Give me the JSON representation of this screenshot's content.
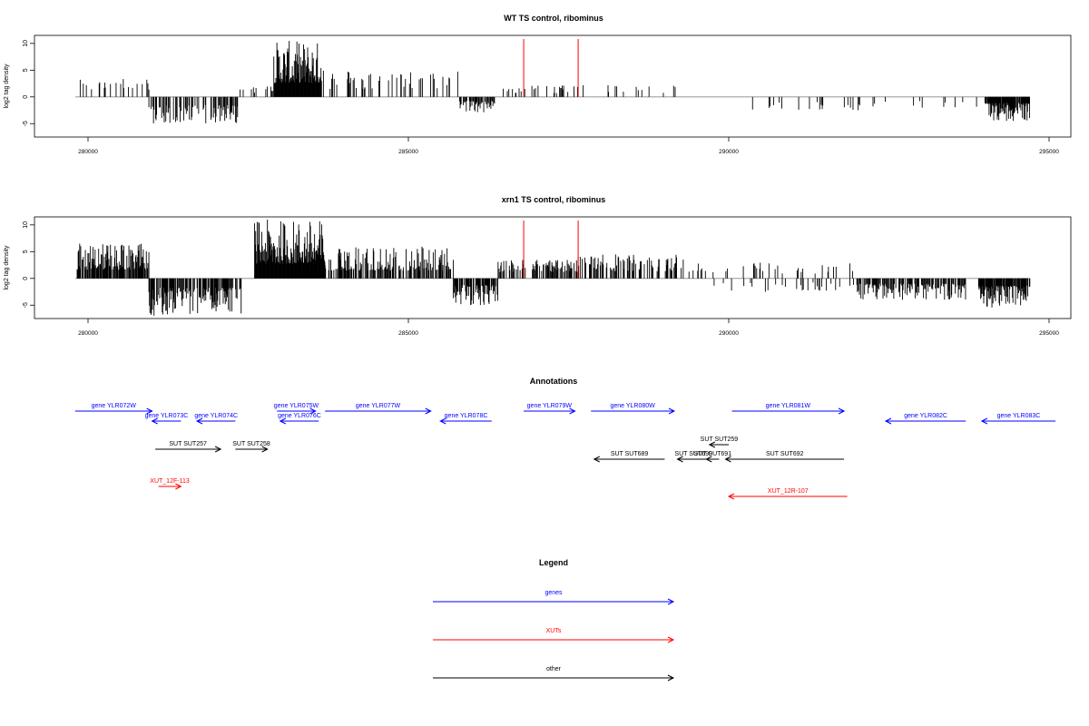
{
  "colors": {
    "gene": "#0000ff",
    "xut": "#ff0000",
    "other": "#000000",
    "marker": "#ff0000",
    "baseline": "#888888"
  },
  "chart_data": [
    {
      "type": "bar",
      "title": "WT TS control, ribominus",
      "xlabel": "",
      "ylabel": "log2 tag density",
      "xlim": [
        279800,
        294700
      ],
      "ylim": [
        -7.5,
        11.5
      ],
      "xticks": [
        280000,
        285000,
        290000,
        295000
      ],
      "yticks": [
        -5,
        0,
        5,
        10
      ],
      "marker_lines_x": [
        286800,
        287650
      ],
      "baseline": 0,
      "segments": [
        {
          "x0": 279830,
          "x1": 280950,
          "sign": 1,
          "max": 3.5,
          "density": 0.2
        },
        {
          "x0": 280950,
          "x1": 282350,
          "sign": -1,
          "max": 5.0,
          "density": 0.45
        },
        {
          "x0": 282350,
          "x1": 282900,
          "sign": 1,
          "max": 2.0,
          "density": 0.15
        },
        {
          "x0": 282900,
          "x1": 283650,
          "sign": 1,
          "max": 10.5,
          "density": 1.0
        },
        {
          "x0": 283650,
          "x1": 285800,
          "sign": 1,
          "max": 5.0,
          "density": 0.15
        },
        {
          "x0": 285800,
          "x1": 286350,
          "sign": -1,
          "max": 3.0,
          "density": 0.6
        },
        {
          "x0": 286400,
          "x1": 287900,
          "sign": 1,
          "max": 2.2,
          "density": 0.1
        },
        {
          "x0": 287900,
          "x1": 289300,
          "sign": 1,
          "max": 2.5,
          "density": 0.08
        },
        {
          "x0": 290300,
          "x1": 293900,
          "sign": -1,
          "max": 2.5,
          "density": 0.05
        },
        {
          "x0": 294000,
          "x1": 294700,
          "sign": -1,
          "max": 4.5,
          "density": 0.9
        }
      ]
    },
    {
      "type": "bar",
      "title": "xrn1 TS control, ribominus",
      "xlabel": "",
      "ylabel": "log2 tag density",
      "xlim": [
        279800,
        294700
      ],
      "ylim": [
        -7.5,
        11.5
      ],
      "xticks": [
        280000,
        285000,
        290000,
        295000
      ],
      "yticks": [
        -5,
        0,
        5,
        10
      ],
      "marker_lines_x": [
        286800,
        287650
      ],
      "baseline": 0,
      "segments": [
        {
          "x0": 279830,
          "x1": 280950,
          "sign": 1,
          "max": 6.5,
          "density": 0.8
        },
        {
          "x0": 280950,
          "x1": 282400,
          "sign": -1,
          "max": 7.0,
          "density": 0.75
        },
        {
          "x0": 282600,
          "x1": 283700,
          "sign": 1,
          "max": 11.0,
          "density": 1.0
        },
        {
          "x0": 283700,
          "x1": 285700,
          "sign": 1,
          "max": 6.0,
          "density": 0.55
        },
        {
          "x0": 285700,
          "x1": 286400,
          "sign": -1,
          "max": 5.0,
          "density": 0.8
        },
        {
          "x0": 286400,
          "x1": 287650,
          "sign": 1,
          "max": 3.5,
          "density": 0.45
        },
        {
          "x0": 287650,
          "x1": 289300,
          "sign": 1,
          "max": 4.5,
          "density": 0.35
        },
        {
          "x0": 289300,
          "x1": 292000,
          "sign": 1,
          "max": 3.0,
          "density": 0.08
        },
        {
          "x0": 289700,
          "x1": 292000,
          "sign": -1,
          "max": 2.5,
          "density": 0.08
        },
        {
          "x0": 292000,
          "x1": 293700,
          "sign": -1,
          "max": 4.0,
          "density": 0.6
        },
        {
          "x0": 293900,
          "x1": 294700,
          "sign": -1,
          "max": 5.5,
          "density": 0.9
        }
      ]
    }
  ],
  "annotations": {
    "title": "Annotations",
    "features": [
      {
        "label": "gene YLR072W",
        "type": "gene",
        "strand": "+",
        "start": 279800,
        "end": 281000,
        "row": 0
      },
      {
        "label": "gene YLR073C",
        "type": "gene",
        "strand": "-",
        "start": 281000,
        "end": 281450,
        "row": 1
      },
      {
        "label": "gene YLR074C",
        "type": "gene",
        "strand": "-",
        "start": 281700,
        "end": 282300,
        "row": 1
      },
      {
        "label": "gene YLR075W",
        "type": "gene",
        "strand": "+",
        "start": 282950,
        "end": 283550,
        "row": 0
      },
      {
        "label": "gene YLR076C",
        "type": "gene",
        "strand": "-",
        "start": 283000,
        "end": 283600,
        "row": 1
      },
      {
        "label": "gene YLR077W",
        "type": "gene",
        "strand": "+",
        "start": 283700,
        "end": 285350,
        "row": 0
      },
      {
        "label": "gene YLR078C",
        "type": "gene",
        "strand": "-",
        "start": 285500,
        "end": 286300,
        "row": 1
      },
      {
        "label": "gene YLR079W",
        "type": "gene",
        "strand": "+",
        "start": 286800,
        "end": 287600,
        "row": 0
      },
      {
        "label": "gene YLR080W",
        "type": "gene",
        "strand": "+",
        "start": 287850,
        "end": 289150,
        "row": 0
      },
      {
        "label": "gene YLR081W",
        "type": "gene",
        "strand": "+",
        "start": 290050,
        "end": 291800,
        "row": 0
      },
      {
        "label": "gene YLR082C",
        "type": "gene",
        "strand": "-",
        "start": 292450,
        "end": 293700,
        "row": 1
      },
      {
        "label": "gene YLR083C",
        "type": "gene",
        "strand": "-",
        "start": 293950,
        "end": 295100,
        "row": 1
      },
      {
        "label": "SUT SUT257",
        "type": "other",
        "strand": "+",
        "start": 281050,
        "end": 282070,
        "row": 2
      },
      {
        "label": "SUT SUT258",
        "type": "other",
        "strand": "+",
        "start": 282300,
        "end": 282800,
        "row": 2
      },
      {
        "label": "SUT SUT259",
        "type": "other",
        "strand": "-",
        "start": 289700,
        "end": 290000,
        "row": 3
      },
      {
        "label": "SUT SUT689",
        "type": "other",
        "strand": "-",
        "start": 287900,
        "end": 289000,
        "row": 4
      },
      {
        "label": "SUT SUT690",
        "type": "other",
        "strand": "-",
        "start": 289200,
        "end": 289700,
        "row": 4
      },
      {
        "label": "SUT SUT691",
        "type": "other",
        "strand": "-",
        "start": 289650,
        "end": 289850,
        "row": 4
      },
      {
        "label": "SUT SUT692",
        "type": "other",
        "strand": "-",
        "start": 289950,
        "end": 291800,
        "row": 4
      },
      {
        "label": "XUT_12F-113",
        "type": "xut",
        "strand": "+",
        "start": 281100,
        "end": 281450,
        "row": 5
      },
      {
        "label": "XUT_12R-107",
        "type": "xut",
        "strand": "-",
        "start": 290000,
        "end": 291850,
        "row": 6
      }
    ]
  },
  "legend": {
    "title": "Legend",
    "items": [
      {
        "label": "genes",
        "type": "gene"
      },
      {
        "label": "XUTs",
        "type": "xut"
      },
      {
        "label": "other",
        "type": "other"
      }
    ]
  }
}
